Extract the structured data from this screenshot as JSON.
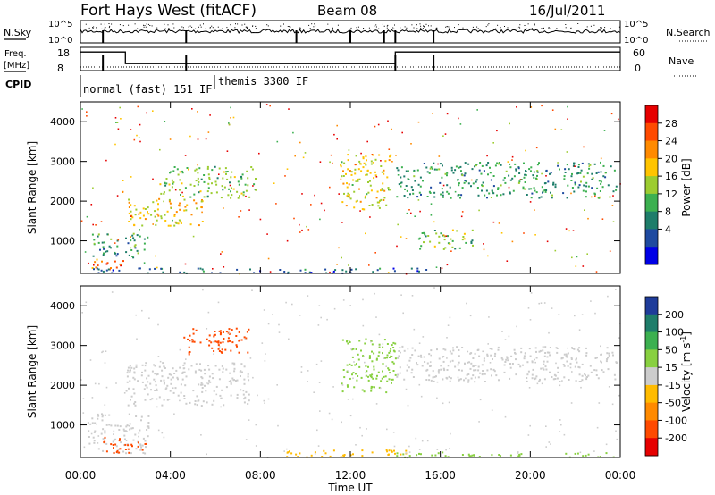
{
  "header": {
    "title": "Fort Hays West (fitACF)",
    "beam": "Beam 08",
    "date": "16/Jul/2011"
  },
  "summary": {
    "nsky_label": "N.Sky",
    "nsky_ticks": [
      "10^5",
      "10^0"
    ],
    "nsearch_label": "N.Search",
    "nsearch_ticks": [
      "10^5",
      "10^0"
    ],
    "freq_label": "Freq.",
    "freq_unit": "[MHz]",
    "freq_ticks": [
      "18",
      "8"
    ],
    "nave_label": "Nave",
    "nave_ticks": [
      "60",
      "0"
    ],
    "cpid_label": "CPID",
    "cpid_segments": [
      "normal (fast) 151 IF",
      "themis 3300 IF"
    ],
    "freq_steps": [
      {
        "start": 0.0,
        "end": 2.0,
        "value": 16
      },
      {
        "start": 2.0,
        "end": 14.0,
        "value": 11
      },
      {
        "start": 14.0,
        "end": 24.0,
        "value": 16
      }
    ]
  },
  "colorbars": {
    "power": {
      "label": "Power [dB]",
      "ticks": [
        "28",
        "24",
        "20",
        "16",
        "12",
        "8",
        "4"
      ],
      "colors": [
        "#e60000",
        "#ff4a00",
        "#ff8a00",
        "#ffc400",
        "#9ccc30",
        "#3cb050",
        "#1e7d6a",
        "#1e4aa0",
        "#0000e6"
      ]
    },
    "velocity": {
      "label": "Velocity [m s",
      "label_sup": "-1",
      "label_end": "]",
      "ticks": [
        "200",
        "100",
        "50",
        "15",
        "-15",
        "-50",
        "-100",
        "-200"
      ],
      "colors": [
        "#1e3c9a",
        "#1e7d6a",
        "#3cb050",
        "#88d040",
        "#cccccc",
        "#ffbb00",
        "#ff8a00",
        "#ff4a00",
        "#e60000"
      ]
    }
  },
  "chart_data": [
    {
      "type": "heatmap",
      "title": "Power",
      "xlabel": "Time UT",
      "ylabel": "Slant Range [km]",
      "x_ticks": [
        "00:00",
        "04:00",
        "08:00",
        "12:00",
        "16:00",
        "20:00",
        "00:00"
      ],
      "y_ticks": [
        "1000",
        "2000",
        "3000",
        "4000"
      ],
      "xlim": [
        0,
        24
      ],
      "ylim": [
        180,
        4500
      ],
      "features": [
        {
          "t0": 0.5,
          "t1": 2.0,
          "r0": 300,
          "r1": 600,
          "value": 26
        },
        {
          "t0": 2.0,
          "t1": 5.5,
          "r0": 1400,
          "r1": 2100,
          "value": 20
        },
        {
          "t0": 3.5,
          "t1": 7.8,
          "r0": 2100,
          "r1": 2900,
          "value": 14
        },
        {
          "t0": 0.5,
          "t1": 3.0,
          "r0": 600,
          "r1": 1200,
          "value": 10
        },
        {
          "t0": 11.5,
          "t1": 13.8,
          "r0": 1800,
          "r1": 3200,
          "value": 18
        },
        {
          "t0": 14.0,
          "t1": 23.8,
          "r0": 2100,
          "r1": 3000,
          "value": 10
        },
        {
          "t0": 15.0,
          "t1": 17.5,
          "r0": 800,
          "r1": 1300,
          "value": 14
        },
        {
          "t0": 0.5,
          "t1": 15.5,
          "r0": 200,
          "r1": 330,
          "value": 6
        }
      ]
    },
    {
      "type": "heatmap",
      "title": "Velocity",
      "xlabel": "Time UT",
      "ylabel": "Slant Range [km]",
      "x_ticks": [
        "00:00",
        "04:00",
        "08:00",
        "12:00",
        "16:00",
        "20:00",
        "00:00"
      ],
      "y_ticks": [
        "1000",
        "2000",
        "3000",
        "4000"
      ],
      "xlim": [
        0,
        24
      ],
      "ylim": [
        180,
        4500
      ],
      "features": [
        {
          "t0": 0.3,
          "t1": 3.0,
          "r0": 300,
          "r1": 1300,
          "value": 0
        },
        {
          "t0": 1.0,
          "t1": 3.0,
          "r0": 300,
          "r1": 700,
          "value": -120
        },
        {
          "t0": 2.0,
          "t1": 7.5,
          "r0": 1500,
          "r1": 2600,
          "value": 0
        },
        {
          "t0": 4.5,
          "t1": 7.5,
          "r0": 2800,
          "r1": 3500,
          "value": -150
        },
        {
          "t0": 9.0,
          "t1": 14.5,
          "r0": 200,
          "r1": 400,
          "value": -40
        },
        {
          "t0": 11.5,
          "t1": 14.0,
          "r0": 1800,
          "r1": 3200,
          "value": 20
        },
        {
          "t0": 14.0,
          "t1": 23.8,
          "r0": 2100,
          "r1": 3000,
          "value": 0
        },
        {
          "t0": 14.0,
          "t1": 23.8,
          "r0": 200,
          "r1": 330,
          "value": 40
        }
      ]
    }
  ]
}
